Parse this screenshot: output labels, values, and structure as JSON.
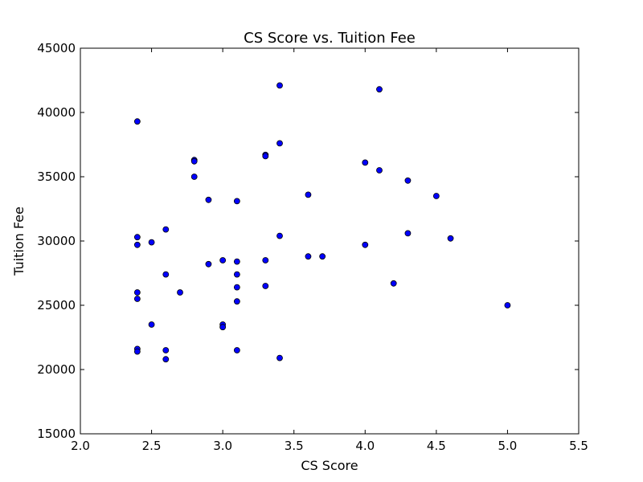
{
  "chart_data": {
    "type": "scatter",
    "title": "CS Score vs. Tuition Fee",
    "xlabel": "CS Score",
    "ylabel": "Tuition Fee",
    "xlim": [
      2.0,
      5.5
    ],
    "ylim": [
      15000,
      45000
    ],
    "xticks": [
      2.0,
      2.5,
      3.0,
      3.5,
      4.0,
      4.5,
      5.0,
      5.5
    ],
    "xtick_labels": [
      "2.0",
      "2.5",
      "3.0",
      "3.5",
      "4.0",
      "4.5",
      "5.0",
      "5.5"
    ],
    "yticks": [
      15000,
      20000,
      25000,
      30000,
      35000,
      40000,
      45000
    ],
    "ytick_labels": [
      "15000",
      "20000",
      "25000",
      "30000",
      "35000",
      "40000",
      "45000"
    ],
    "grid": false,
    "marker_color": "#0000ff",
    "marker_edge_color": "#000000",
    "points": [
      {
        "x": 2.4,
        "y": 39300
      },
      {
        "x": 2.4,
        "y": 30300
      },
      {
        "x": 2.4,
        "y": 29700
      },
      {
        "x": 2.4,
        "y": 26000
      },
      {
        "x": 2.4,
        "y": 25500
      },
      {
        "x": 2.4,
        "y": 21600
      },
      {
        "x": 2.4,
        "y": 21400
      },
      {
        "x": 2.5,
        "y": 29900
      },
      {
        "x": 2.5,
        "y": 23500
      },
      {
        "x": 2.6,
        "y": 30900
      },
      {
        "x": 2.6,
        "y": 27400
      },
      {
        "x": 2.6,
        "y": 21500
      },
      {
        "x": 2.6,
        "y": 20800
      },
      {
        "x": 2.7,
        "y": 26000
      },
      {
        "x": 2.8,
        "y": 36300
      },
      {
        "x": 2.8,
        "y": 36200
      },
      {
        "x": 2.8,
        "y": 35000
      },
      {
        "x": 2.9,
        "y": 33200
      },
      {
        "x": 2.9,
        "y": 28200
      },
      {
        "x": 3.0,
        "y": 28500
      },
      {
        "x": 3.0,
        "y": 23500
      },
      {
        "x": 3.0,
        "y": 23300
      },
      {
        "x": 3.1,
        "y": 33100
      },
      {
        "x": 3.1,
        "y": 28400
      },
      {
        "x": 3.1,
        "y": 27400
      },
      {
        "x": 3.1,
        "y": 26400
      },
      {
        "x": 3.1,
        "y": 25300
      },
      {
        "x": 3.1,
        "y": 21500
      },
      {
        "x": 3.3,
        "y": 36700
      },
      {
        "x": 3.3,
        "y": 36600
      },
      {
        "x": 3.3,
        "y": 28500
      },
      {
        "x": 3.3,
        "y": 26500
      },
      {
        "x": 3.4,
        "y": 42100
      },
      {
        "x": 3.4,
        "y": 37600
      },
      {
        "x": 3.4,
        "y": 30400
      },
      {
        "x": 3.4,
        "y": 20900
      },
      {
        "x": 3.6,
        "y": 33600
      },
      {
        "x": 3.6,
        "y": 28800
      },
      {
        "x": 3.7,
        "y": 28800
      },
      {
        "x": 4.0,
        "y": 36100
      },
      {
        "x": 4.0,
        "y": 29700
      },
      {
        "x": 4.1,
        "y": 41800
      },
      {
        "x": 4.1,
        "y": 35500
      },
      {
        "x": 4.2,
        "y": 26700
      },
      {
        "x": 4.3,
        "y": 34700
      },
      {
        "x": 4.3,
        "y": 30600
      },
      {
        "x": 4.5,
        "y": 33500
      },
      {
        "x": 4.6,
        "y": 30200
      },
      {
        "x": 5.0,
        "y": 25000
      }
    ]
  }
}
